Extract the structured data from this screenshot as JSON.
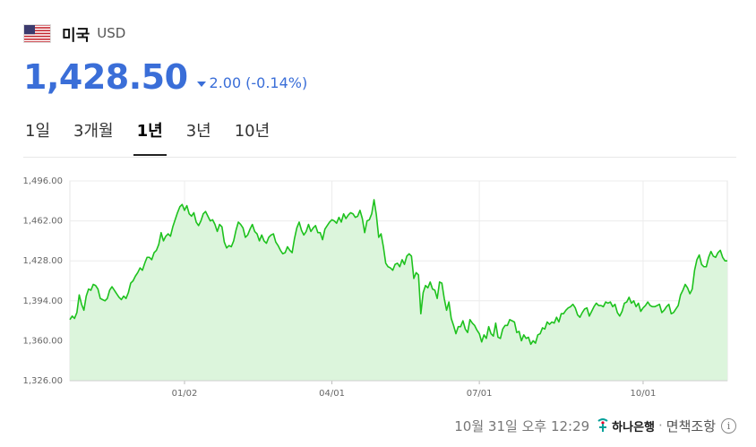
{
  "header": {
    "country": "미국",
    "currency": "USD",
    "flag_icon": "us-flag-icon"
  },
  "price": {
    "value": "1,428.50",
    "direction": "down",
    "change": "2.00",
    "change_pct": "(-0.14%)",
    "color": "#3a6ed8"
  },
  "tabs": [
    {
      "label": "1일",
      "active": false
    },
    {
      "label": "3개월",
      "active": false
    },
    {
      "label": "1년",
      "active": true
    },
    {
      "label": "3년",
      "active": false
    },
    {
      "label": "10년",
      "active": false
    }
  ],
  "footer": {
    "timestamp": "10월 31일 오후 12:29",
    "bank": "하나은행",
    "separator": "·",
    "disclaimer": "면책조항",
    "info_icon": "i"
  },
  "chart_data": {
    "type": "area",
    "title": "",
    "xlabel": "",
    "ylabel": "",
    "line_color": "#1ec21e",
    "fill_color": "#dcf5dc",
    "ylim": [
      1326.0,
      1496.0
    ],
    "yticks": [
      "1,496.00",
      "1,462.00",
      "1,428.00",
      "1,394.00",
      "1,360.00",
      "1,326.00"
    ],
    "ytick_values": [
      1496,
      1462,
      1428,
      1394,
      1360,
      1326
    ],
    "xticks": [
      {
        "label": "01/02",
        "index": 49
      },
      {
        "label": "04/01",
        "index": 112
      },
      {
        "label": "07/01",
        "index": 175
      },
      {
        "label": "10/01",
        "index": 245
      }
    ],
    "grid": true,
    "values": [
      1378,
      1381,
      1379,
      1384,
      1399,
      1391,
      1386,
      1398,
      1404,
      1403,
      1408,
      1407,
      1404,
      1396,
      1395,
      1394,
      1396,
      1403,
      1406,
      1403,
      1400,
      1397,
      1395,
      1398,
      1396,
      1401,
      1409,
      1411,
      1415,
      1418,
      1422,
      1420,
      1426,
      1431,
      1431,
      1429,
      1435,
      1437,
      1442,
      1452,
      1445,
      1449,
      1451,
      1449,
      1457,
      1463,
      1469,
      1474,
      1476,
      1471,
      1475,
      1468,
      1466,
      1469,
      1461,
      1458,
      1462,
      1468,
      1470,
      1466,
      1462,
      1463,
      1459,
      1453,
      1459,
      1457,
      1444,
      1439,
      1441,
      1440,
      1445,
      1454,
      1461,
      1459,
      1456,
      1448,
      1450,
      1455,
      1459,
      1453,
      1451,
      1445,
      1450,
      1445,
      1443,
      1448,
      1450,
      1451,
      1444,
      1441,
      1437,
      1434,
      1435,
      1440,
      1437,
      1435,
      1447,
      1456,
      1461,
      1454,
      1450,
      1453,
      1459,
      1453,
      1456,
      1458,
      1452,
      1452,
      1446,
      1455,
      1458,
      1461,
      1463,
      1462,
      1460,
      1465,
      1461,
      1468,
      1464,
      1467,
      1469,
      1468,
      1465,
      1466,
      1471,
      1464,
      1452,
      1462,
      1463,
      1468,
      1480,
      1467,
      1448,
      1451,
      1440,
      1426,
      1423,
      1422,
      1420,
      1425,
      1426,
      1423,
      1429,
      1425,
      1432,
      1434,
      1432,
      1413,
      1418,
      1416,
      1383,
      1401,
      1407,
      1405,
      1410,
      1404,
      1403,
      1396,
      1410,
      1409,
      1396,
      1386,
      1393,
      1379,
      1373,
      1366,
      1372,
      1372,
      1377,
      1370,
      1367,
      1378,
      1375,
      1373,
      1369,
      1366,
      1359,
      1365,
      1362,
      1372,
      1366,
      1364,
      1375,
      1363,
      1362,
      1370,
      1373,
      1373,
      1378,
      1377,
      1376,
      1367,
      1368,
      1360,
      1365,
      1362,
      1363,
      1357,
      1360,
      1358,
      1365,
      1366,
      1371,
      1370,
      1376,
      1374,
      1376,
      1375,
      1380,
      1376,
      1383,
      1383,
      1386,
      1388,
      1389,
      1391,
      1388,
      1382,
      1380,
      1384,
      1387,
      1388,
      1381,
      1385,
      1389,
      1392,
      1390,
      1390,
      1389,
      1393,
      1392,
      1393,
      1389,
      1391,
      1384,
      1381,
      1385,
      1392,
      1393,
      1397,
      1392,
      1394,
      1389,
      1392,
      1385,
      1388,
      1390,
      1393,
      1390,
      1389,
      1389,
      1390,
      1391,
      1384,
      1386,
      1389,
      1391,
      1383,
      1384,
      1387,
      1390,
      1399,
      1403,
      1408,
      1405,
      1400,
      1404,
      1420,
      1429,
      1433,
      1425,
      1423,
      1423,
      1431,
      1436,
      1432,
      1431,
      1435,
      1437,
      1431,
      1428,
      1428
    ]
  }
}
